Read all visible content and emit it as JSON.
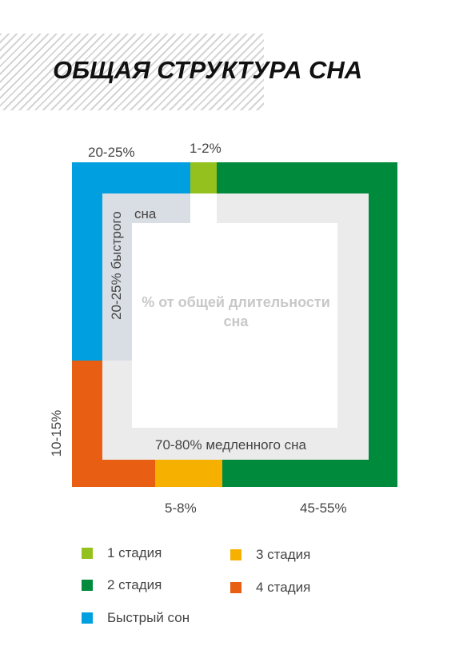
{
  "title": "ОБЩАЯ СТРУКТУРА СНА",
  "colors": {
    "stage1": "#95c11f",
    "stage2": "#008a3c",
    "stage3": "#f6b000",
    "stage4": "#e85e13",
    "rem": "#009fdf",
    "inner_light": "#ebebeb",
    "inner_rem": "#d9dde4"
  },
  "labels": {
    "rem_top": "20-25%",
    "stage1_top": "1-2%",
    "stage4_side": "10-15%",
    "stage3_bottom": "5-8%",
    "stage2_bottom": "45-55%",
    "rem_inner": "20-25% быстрого",
    "rem_inner_tail": "сна",
    "slow_inner": "70-80% медленного сна",
    "center": "% от общей длительности сна"
  },
  "legend": [
    {
      "label": "1 стадия",
      "color": "#95c11f"
    },
    {
      "label": "2 стадия",
      "color": "#008a3c"
    },
    {
      "label": "Быстрый сон",
      "color": "#009fdf"
    },
    {
      "label": "3 стадия",
      "color": "#f6b000"
    },
    {
      "label": "4 стадия",
      "color": "#e85e13"
    }
  ]
}
